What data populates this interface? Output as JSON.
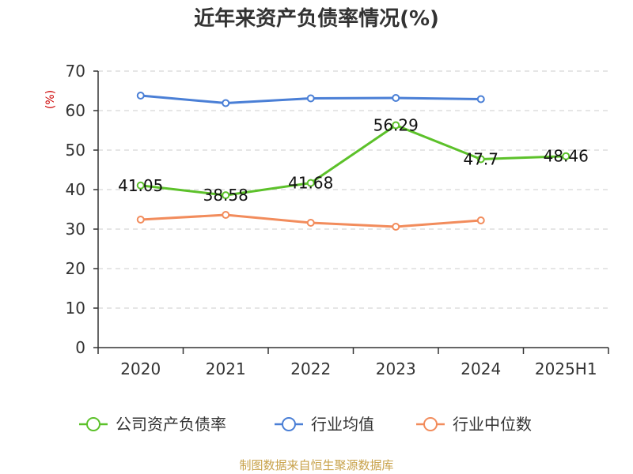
{
  "chart_data": {
    "type": "line",
    "title": "近年来资产负债率情况(%)",
    "ylabel": "(%)",
    "xlabel": "",
    "categories": [
      "2020",
      "2021",
      "2022",
      "2023",
      "2024",
      "2025H1"
    ],
    "ylim": [
      0,
      70
    ],
    "yticks": [
      0,
      10,
      20,
      30,
      40,
      50,
      60,
      70
    ],
    "grid": true,
    "legend_position": "bottom",
    "series": [
      {
        "name": "公司资产负债率",
        "color": "#5cc12a",
        "values": [
          41.05,
          38.58,
          41.68,
          56.29,
          47.7,
          48.46
        ],
        "labels": [
          "41.05",
          "38.58",
          "41.68",
          "56.29",
          "47.7",
          "48.46"
        ]
      },
      {
        "name": "行业均值",
        "color": "#4a7fd6",
        "values": [
          63.8,
          61.9,
          63.1,
          63.2,
          62.9,
          null
        ]
      },
      {
        "name": "行业中位数",
        "color": "#f28c5c",
        "values": [
          32.4,
          33.6,
          31.6,
          30.6,
          32.2,
          null
        ]
      }
    ]
  },
  "footer": {
    "source": "制图数据来自恒生聚源数据库"
  }
}
